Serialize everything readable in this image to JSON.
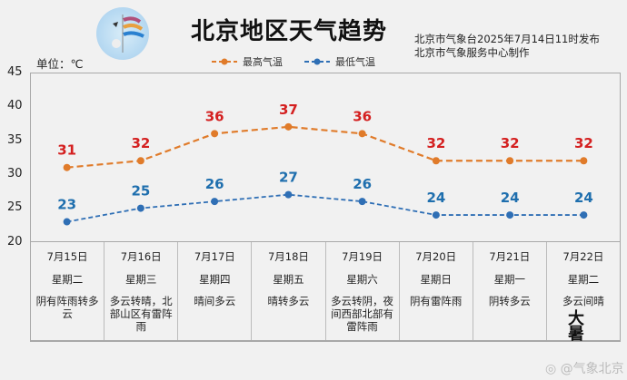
{
  "header": {
    "title": "北京地区天气趋势",
    "issuer_line1": "北京市气象台2025年7月14日11时发布",
    "issuer_line2": "北京市气象服务中心制作",
    "unit": "单位：℃",
    "logo": "beijing-meteorological-service-logo"
  },
  "legend": {
    "high": "最高气温",
    "low": "最低气温"
  },
  "colors": {
    "high_line": "#e07b2a",
    "high_label": "#d42020",
    "low_line": "#2f6fb5",
    "low_label": "#1f6fae",
    "grid_border": "#a8a8a8"
  },
  "chart_data": {
    "type": "line",
    "title": "北京地区天气趋势",
    "ylabel": "单位：℃",
    "ylim": [
      20,
      45
    ],
    "yticks": [
      20,
      25,
      30,
      35,
      40,
      45
    ],
    "categories": [
      "7月15日",
      "7月16日",
      "7月17日",
      "7月18日",
      "7月19日",
      "7月20日",
      "7月21日",
      "7月22日"
    ],
    "series": [
      {
        "name": "最高气温",
        "color": "#e07b2a",
        "style": "dashed",
        "values": [
          31,
          32,
          36,
          37,
          36,
          32,
          32,
          32
        ]
      },
      {
        "name": "最低气温",
        "color": "#2f6fb5",
        "style": "dashed",
        "values": [
          23,
          25,
          26,
          27,
          26,
          24,
          24,
          24
        ]
      }
    ],
    "legend_position": "top",
    "grid": false
  },
  "days": [
    {
      "date": "7月15日",
      "weekday": "星期二",
      "condition": "阴有阵雨转多云"
    },
    {
      "date": "7月16日",
      "weekday": "星期三",
      "condition": "多云转晴，北部山区有雷阵雨"
    },
    {
      "date": "7月17日",
      "weekday": "星期四",
      "condition": "晴间多云"
    },
    {
      "date": "7月18日",
      "weekday": "星期五",
      "condition": "晴转多云"
    },
    {
      "date": "7月19日",
      "weekday": "星期六",
      "condition": "多云转阴，夜间西部北部有雷阵雨"
    },
    {
      "date": "7月20日",
      "weekday": "星期日",
      "condition": "阴有雷阵雨"
    },
    {
      "date": "7月21日",
      "weekday": "星期一",
      "condition": "阴转多云"
    },
    {
      "date": "7月22日",
      "weekday": "星期二",
      "condition": "多云间晴"
    }
  ],
  "seal": "大暑",
  "watermark": "@气象北京"
}
